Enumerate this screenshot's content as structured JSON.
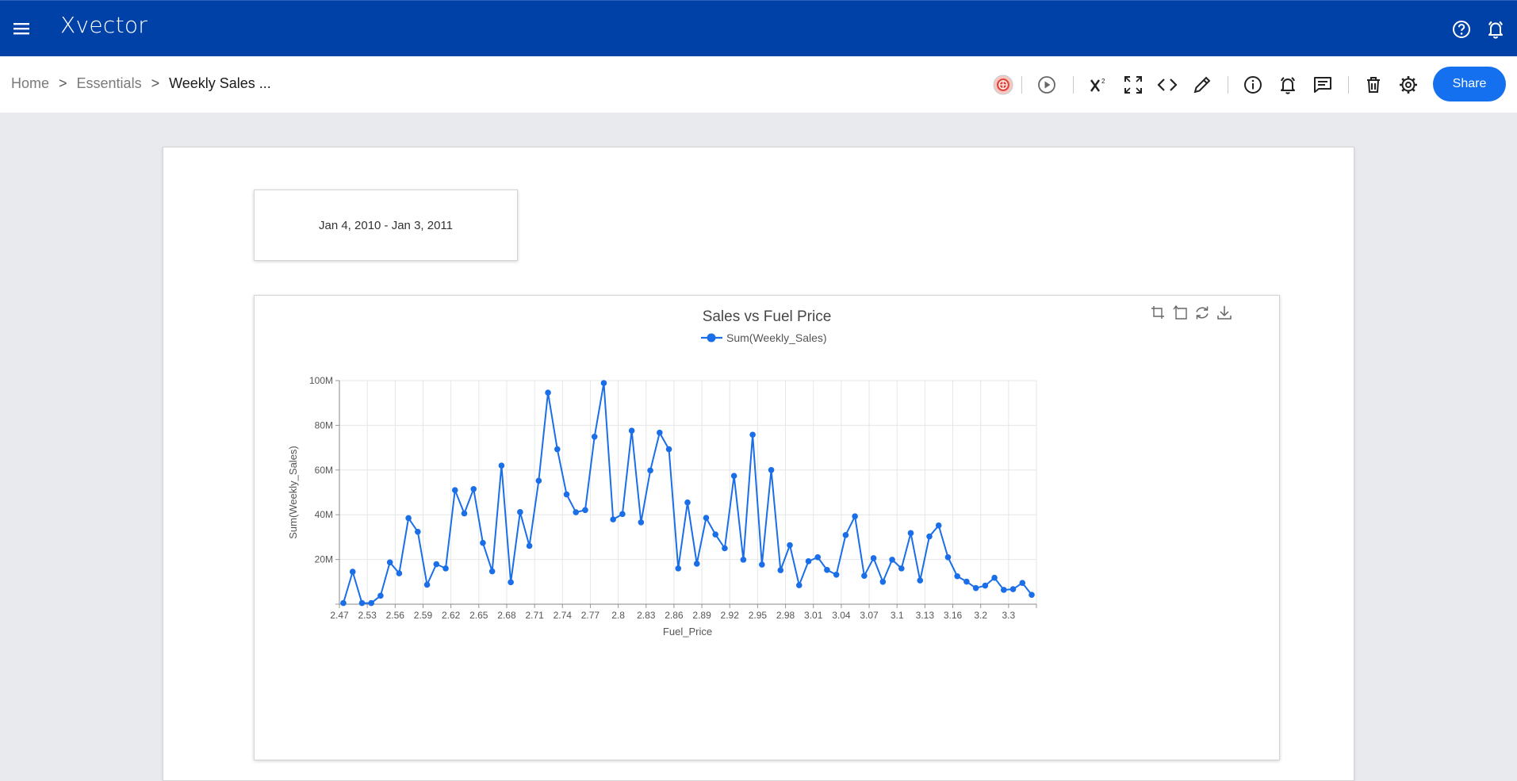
{
  "app": {
    "logo": "Xvector"
  },
  "topbar": {
    "menu_icon": "menu-icon",
    "help_icon": "help-circle-icon",
    "alerts_icon": "bell-alert-icon"
  },
  "breadcrumb": {
    "items": [
      "Home",
      "Essentials",
      "Weekly Sales ..."
    ],
    "separator": ">"
  },
  "toolbar": {
    "icons": [
      "status-badge-icon",
      "run-icon",
      "formula-icon",
      "fullscreen-icon",
      "code-icon",
      "edit-icon",
      "info-icon",
      "alert-icon",
      "comment-icon",
      "delete-icon",
      "settings-icon"
    ],
    "share_label": "Share"
  },
  "filter": {
    "date_range": "Jan 4, 2010 - Jan 3, 2011"
  },
  "colors": {
    "header": "#0041a8",
    "accent": "#1570ef",
    "series": "#1a6ee8"
  },
  "chart_tools": [
    "crop-icon",
    "undo-crop-icon",
    "refresh-icon",
    "download-icon"
  ],
  "chart_data": {
    "type": "line",
    "title": "Sales vs Fuel Price",
    "xlabel": "Fuel_Price",
    "ylabel": "Sum(Weekly_Sales)",
    "ylim": [
      0,
      100000000
    ],
    "y_ticks": [
      "",
      "20M",
      "40M",
      "60M",
      "80M",
      "100M"
    ],
    "x_ticks": [
      "2.47",
      "2.53",
      "2.56",
      "2.59",
      "2.62",
      "2.65",
      "2.68",
      "2.71",
      "2.74",
      "2.77",
      "2.8",
      "2.83",
      "2.86",
      "2.89",
      "2.92",
      "2.95",
      "2.98",
      "3.01",
      "3.04",
      "3.07",
      "3.1",
      "3.13",
      "3.16",
      "3.2",
      "3.3"
    ],
    "legend": "top",
    "grid": true,
    "series": [
      {
        "name": "Sum(Weekly_Sales)",
        "values": [
          0.5,
          14.5,
          0.5,
          0.5,
          3.8,
          18.7,
          13.8,
          38.5,
          32.4,
          8.7,
          17.9,
          16.0,
          51.0,
          40.6,
          51.5,
          27.4,
          14.7,
          62.0,
          9.8,
          41.2,
          26.1,
          55.2,
          94.6,
          69.3,
          49.1,
          41.1,
          42.1,
          74.9,
          98.9,
          37.9,
          40.3,
          77.6,
          36.6,
          59.8,
          76.7,
          69.3,
          16.0,
          45.5,
          18.1,
          38.6,
          31.2,
          25.0,
          57.4,
          19.9,
          75.8,
          17.7,
          60.0,
          15.2,
          26.4,
          8.5,
          19.2,
          21.0,
          15.3,
          13.2,
          30.9,
          39.3,
          12.7,
          20.6,
          10.0,
          19.9,
          16.0,
          31.8,
          10.6,
          30.3,
          35.2,
          21.0,
          12.5,
          10.1,
          7.2,
          8.3,
          11.8,
          6.4,
          6.7,
          9.5,
          4.2
        ]
      }
    ]
  }
}
